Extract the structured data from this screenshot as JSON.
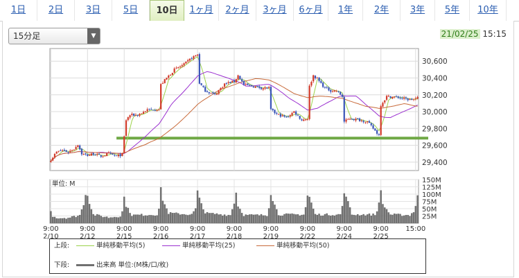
{
  "tabs": [
    {
      "label": "1日",
      "active": false
    },
    {
      "label": "2日",
      "active": false
    },
    {
      "label": "3日",
      "active": false
    },
    {
      "label": "5日",
      "active": false
    },
    {
      "label": "10日",
      "active": true
    },
    {
      "label": "1ヶ月",
      "active": false
    },
    {
      "label": "2ヶ月",
      "active": false
    },
    {
      "label": "3ヶ月",
      "active": false
    },
    {
      "label": "6ヶ月",
      "active": false
    },
    {
      "label": "1年",
      "active": false
    },
    {
      "label": "2年",
      "active": false
    },
    {
      "label": "3年",
      "active": false
    },
    {
      "label": "5年",
      "active": false
    },
    {
      "label": "10年",
      "active": false
    }
  ],
  "interval": {
    "selected": "15分足"
  },
  "datetime": {
    "date": "21/02/25",
    "time": "15:15"
  },
  "colors": {
    "up": "#d23a2a",
    "down": "#3a55b8",
    "ma5": "#9bd24a",
    "ma25": "#9b30d0",
    "ma50": "#c86a3a",
    "support": "#6fa845",
    "volume": "#707070"
  },
  "legend": {
    "upper_label": "上段:",
    "lower_label": "下段:",
    "ma": [
      {
        "label": "単純移動平均(5)",
        "color": "#9bd24a"
      },
      {
        "label": "単純移動平均(25)",
        "color": "#9b30d0"
      },
      {
        "label": "単純移動平均(50)",
        "color": "#c86a3a"
      }
    ],
    "volume_label": "出来高 単位:(M株/口/枚)"
  },
  "chart_data": {
    "type": "candlestick",
    "x_ticks": [
      {
        "time": "9:00",
        "date": "2/10",
        "bar": 0
      },
      {
        "time": "9:00",
        "date": "2/12",
        "bar": 19
      },
      {
        "time": "9:00",
        "date": "2/15",
        "bar": 38
      },
      {
        "time": "9:00",
        "date": "2/16",
        "bar": 57
      },
      {
        "time": "9:00",
        "date": "2/17",
        "bar": 76
      },
      {
        "time": "9:00",
        "date": "2/18",
        "bar": 95
      },
      {
        "time": "9:00",
        "date": "2/19",
        "bar": 114
      },
      {
        "time": "9:00",
        "date": "2/22",
        "bar": 133
      },
      {
        "time": "9:00",
        "date": "2/24",
        "bar": 152
      },
      {
        "time": "9:00",
        "date": "2/25",
        "bar": 171
      },
      {
        "time": "15:00",
        "date": "",
        "bar": 189
      }
    ],
    "price_axis": {
      "ticks": [
        29400,
        29600,
        29800,
        30000,
        30200,
        30400,
        30600
      ],
      "range": [
        29300,
        30750
      ]
    },
    "volume_axis": {
      "label": "単位: M",
      "ticks": [
        "150M",
        "125M",
        "100M",
        "75M",
        "50M",
        "25M"
      ],
      "range": [
        0,
        150
      ]
    },
    "support_level": 29685,
    "price_anchors": [
      [
        0,
        29430
      ],
      [
        3,
        29520
      ],
      [
        6,
        29540
      ],
      [
        9,
        29520
      ],
      [
        12,
        29560
      ],
      [
        14,
        29610
      ],
      [
        16,
        29500
      ],
      [
        19,
        29480
      ],
      [
        22,
        29500
      ],
      [
        26,
        29470
      ],
      [
        30,
        29500
      ],
      [
        34,
        29470
      ],
      [
        37,
        29490
      ],
      [
        38,
        29700
      ],
      [
        39,
        29900
      ],
      [
        41,
        29960
      ],
      [
        45,
        29960
      ],
      [
        50,
        30020
      ],
      [
        56,
        30030
      ],
      [
        57,
        30320
      ],
      [
        60,
        30400
      ],
      [
        64,
        30500
      ],
      [
        69,
        30560
      ],
      [
        73,
        30640
      ],
      [
        76,
        30680
      ],
      [
        77,
        30340
      ],
      [
        80,
        30250
      ],
      [
        85,
        30200
      ],
      [
        90,
        30330
      ],
      [
        95,
        30360
      ],
      [
        97,
        30430
      ],
      [
        100,
        30320
      ],
      [
        105,
        30300
      ],
      [
        110,
        30280
      ],
      [
        113,
        30280
      ],
      [
        114,
        30020
      ],
      [
        117,
        29970
      ],
      [
        122,
        29930
      ],
      [
        126,
        30000
      ],
      [
        130,
        29900
      ],
      [
        133,
        29920
      ],
      [
        134,
        30300
      ],
      [
        136,
        30430
      ],
      [
        138,
        30390
      ],
      [
        142,
        30280
      ],
      [
        145,
        30250
      ],
      [
        148,
        30250
      ],
      [
        151,
        30180
      ],
      [
        152,
        29880
      ],
      [
        155,
        29920
      ],
      [
        160,
        29900
      ],
      [
        164,
        29880
      ],
      [
        167,
        29800
      ],
      [
        170,
        29720
      ],
      [
        171,
        30080
      ],
      [
        174,
        30180
      ],
      [
        180,
        30170
      ],
      [
        186,
        30140
      ],
      [
        190,
        30160
      ]
    ],
    "volume_anchors": [
      [
        0,
        40
      ],
      [
        1,
        25
      ],
      [
        4,
        18
      ],
      [
        10,
        20
      ],
      [
        15,
        28
      ],
      [
        17,
        65
      ],
      [
        18,
        100
      ],
      [
        19,
        95
      ],
      [
        20,
        70
      ],
      [
        22,
        30
      ],
      [
        30,
        20
      ],
      [
        36,
        25
      ],
      [
        37,
        40
      ],
      [
        38,
        90
      ],
      [
        39,
        60
      ],
      [
        42,
        28
      ],
      [
        55,
        30
      ],
      [
        56,
        50
      ],
      [
        57,
        120
      ],
      [
        58,
        80
      ],
      [
        61,
        35
      ],
      [
        73,
        30
      ],
      [
        75,
        50
      ],
      [
        76,
        110
      ],
      [
        77,
        85
      ],
      [
        80,
        35
      ],
      [
        93,
        28
      ],
      [
        95,
        70
      ],
      [
        96,
        105
      ],
      [
        97,
        60
      ],
      [
        100,
        28
      ],
      [
        112,
        28
      ],
      [
        113,
        55
      ],
      [
        114,
        100
      ],
      [
        115,
        80
      ],
      [
        118,
        30
      ],
      [
        131,
        30
      ],
      [
        132,
        55
      ],
      [
        133,
        95
      ],
      [
        134,
        90
      ],
      [
        137,
        30
      ],
      [
        150,
        30
      ],
      [
        151,
        60
      ],
      [
        152,
        100
      ],
      [
        153,
        95
      ],
      [
        156,
        30
      ],
      [
        168,
        30
      ],
      [
        169,
        40
      ],
      [
        170,
        75
      ],
      [
        171,
        110
      ],
      [
        172,
        65
      ],
      [
        176,
        30
      ],
      [
        186,
        28
      ],
      [
        188,
        40
      ],
      [
        189,
        60
      ],
      [
        190,
        95
      ]
    ],
    "ma_periods": [
      5,
      25,
      50
    ],
    "total_bars": 191
  }
}
